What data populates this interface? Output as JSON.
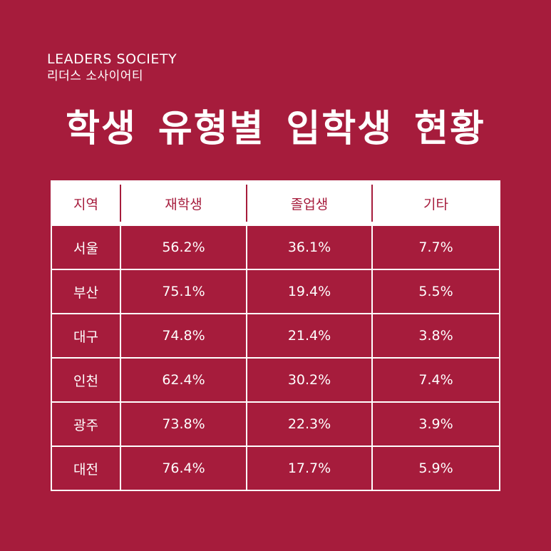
{
  "brand": {
    "name_en": "LEADERS SOCIETY",
    "name_ko": "리더스 소사이어티"
  },
  "title": "학생 유형별 입학생 현황",
  "table": {
    "headers": [
      "지역",
      "재학생",
      "졸업생",
      "기타"
    ],
    "rows": [
      [
        "서울",
        "56.2%",
        "36.1%",
        "7.7%"
      ],
      [
        "부산",
        "75.1%",
        "19.4%",
        "5.5%"
      ],
      [
        "대구",
        "74.8%",
        "21.4%",
        "3.8%"
      ],
      [
        "인천",
        "62.4%",
        "30.2%",
        "7.4%"
      ],
      [
        "광주",
        "73.8%",
        "22.3%",
        "3.9%"
      ],
      [
        "대전",
        "76.4%",
        "17.7%",
        "5.9%"
      ]
    ]
  },
  "colors": {
    "background": "#a61c3c",
    "foreground": "#ffffff"
  }
}
